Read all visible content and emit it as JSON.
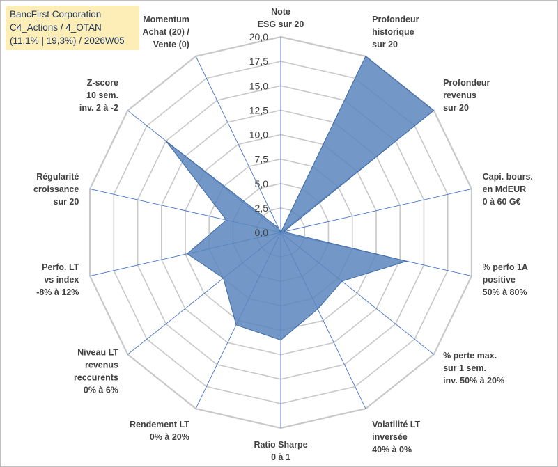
{
  "title": {
    "line1": "BancFirst Corporation",
    "line2": "C4_Actions / 4_OTAN",
    "line3": "(11,1% | 19,3%) / 2026W05"
  },
  "colors": {
    "fill": "#5b86bd",
    "stroke": "#3f6aa6",
    "grid": "#c8c8c8",
    "spoke": "#4472c4",
    "title_bg": "#fdeeb8"
  },
  "chart_data": {
    "type": "radar",
    "r_range": [
      0,
      20
    ],
    "r_ticks": [
      "0,0",
      "2,5",
      "5,0",
      "7,5",
      "10,0",
      "12,5",
      "15,0",
      "17,5",
      "20,0"
    ],
    "grid": true,
    "axes": [
      {
        "label": [
          "Note",
          "ESG sur 20"
        ],
        "value": 0
      },
      {
        "label": [
          "Profondeur",
          "historique",
          "sur 20"
        ],
        "value": 20
      },
      {
        "label": [
          "Profondeur",
          "revenus",
          "sur 20"
        ],
        "value": 20
      },
      {
        "label": [
          "Capi. bours.",
          "en MdEUR",
          "0 à 60 G€"
        ],
        "value": 0.3
      },
      {
        "label": [
          "% perfo 1A",
          "positive",
          "50% à 80%"
        ],
        "value": 13.2
      },
      {
        "label": [
          "% perte max.",
          "sur 1 sem.",
          "inv. 50% à 20%"
        ],
        "value": 8
      },
      {
        "label": [
          "Volatilité LT",
          "inversée",
          "40% à 0%"
        ],
        "value": 8.7
      },
      {
        "label": [
          "Ratio Sharpe",
          "0 à 1"
        ],
        "value": 11
      },
      {
        "label": [
          "Rendement LT",
          "0% à 20%"
        ],
        "value": 10.5
      },
      {
        "label": [
          "Niveau LT",
          "revenus",
          "reccurents",
          "0% à 6%"
        ],
        "value": 7.5
      },
      {
        "label": [
          "Perfo. LT",
          "vs index",
          "-8% à 12%"
        ],
        "value": 9.8
      },
      {
        "label": [
          "Régularité",
          "croissance",
          "sur 20"
        ],
        "value": 5.7
      },
      {
        "label": [
          "Z-score",
          "10 sem.",
          "inv. 2 à -2"
        ],
        "value": 15
      },
      {
        "label": [
          "Momentum",
          "Achat (20) /",
          "Vente (0)"
        ],
        "value": 0.5
      }
    ]
  }
}
